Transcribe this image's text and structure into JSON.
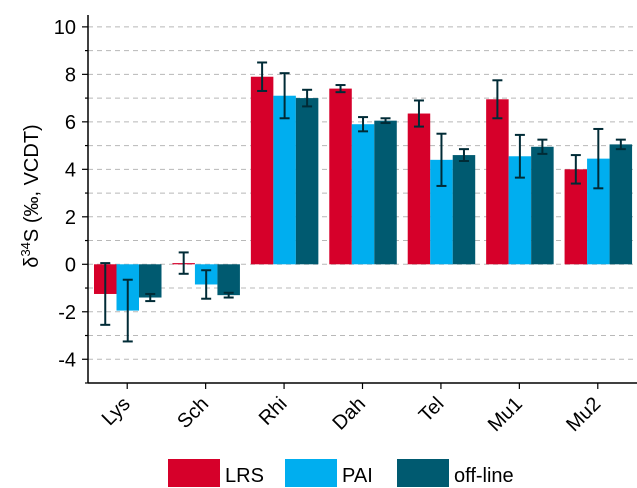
{
  "chart_data": {
    "type": "bar",
    "categories": [
      "Lys",
      "Sch",
      "Rhi",
      "Dah",
      "Tel",
      "Mu1",
      "Mu2"
    ],
    "series": [
      {
        "name": "LRS",
        "color": "#d6002a",
        "values": [
          -1.25,
          0.05,
          7.9,
          7.4,
          6.35,
          6.95,
          4.0
        ],
        "errors": [
          1.3,
          0.45,
          0.6,
          0.15,
          0.55,
          0.8,
          0.6
        ]
      },
      {
        "name": "PAI",
        "color": "#00aeef",
        "values": [
          -1.95,
          -0.85,
          7.1,
          5.9,
          4.4,
          4.55,
          4.45
        ],
        "errors": [
          1.3,
          0.6,
          0.95,
          0.3,
          1.1,
          0.9,
          1.25
        ]
      },
      {
        "name": "off-line",
        "color": "#005a70",
        "values": [
          -1.4,
          -1.3,
          7.0,
          6.05,
          4.6,
          4.95,
          5.05
        ],
        "errors": [
          0.15,
          0.1,
          0.35,
          0.1,
          0.25,
          0.3,
          0.2
        ]
      }
    ],
    "ylabel_prefix": "δ",
    "ylabel_sup": "34",
    "ylabel_rest": "S (‰, VCDT)",
    "ylim": [
      -5,
      10.5
    ],
    "yticks": [
      -4,
      -2,
      0,
      2,
      4,
      6,
      8,
      10
    ],
    "grid": "horizontal-dashed",
    "legend_position": "bottom"
  }
}
